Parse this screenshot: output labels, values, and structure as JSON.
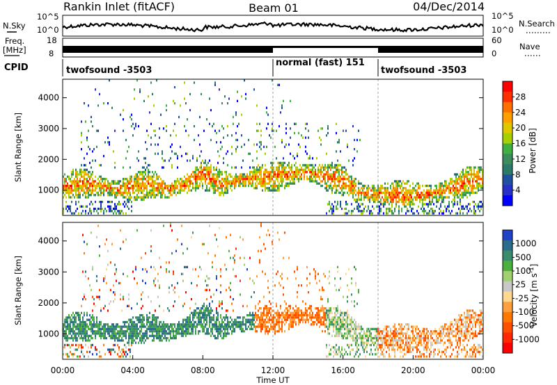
{
  "header": {
    "station": "Rankin Inlet (fitACF)",
    "beam": "Beam 01",
    "date": "04/Dec/2014"
  },
  "noise_panel": {
    "left_label": "N.Sky",
    "right_label": "N.Search",
    "left_ticks": [
      "10^5",
      "10^0"
    ],
    "right_ticks": [
      "10^5",
      "10^0"
    ]
  },
  "freq_panel": {
    "left_label_1": "Freq.",
    "left_label_2": "[MHz]",
    "right_label": "Nave",
    "left_ticks": [
      "18",
      "8"
    ],
    "right_ticks": [
      "60",
      "0"
    ]
  },
  "cpid": {
    "label": "CPID",
    "segments": [
      {
        "name": "twofsound -3503",
        "start_hour": 0,
        "end_hour": 12
      },
      {
        "name": "normal (fast) 151",
        "start_hour": 12,
        "end_hour": 18
      },
      {
        "name": "twofsound -3503",
        "start_hour": 18,
        "end_hour": 24
      }
    ]
  },
  "power_panel": {
    "ylabel": "Slant Range [km]",
    "yticks": [
      "4000",
      "3000",
      "2000",
      "1000"
    ],
    "colorbar_label": "Power [dB]",
    "colorbar_ticks": [
      "28",
      "24",
      "20",
      "16",
      "12",
      "8",
      "4"
    ],
    "colorbar_colors": [
      "#ff0000",
      "#ff3000",
      "#ff7000",
      "#ffa000",
      "#e0c800",
      "#a8d000",
      "#40b040",
      "#3c8c5c",
      "#2c7a6a",
      "#2050a0",
      "#2830c8",
      "#0000ff"
    ]
  },
  "velocity_panel": {
    "ylabel": "Slant Range [km]",
    "yticks": [
      "4000",
      "3000",
      "2000",
      "1000"
    ],
    "colorbar_label": "Velocity [m s^-1]",
    "colorbar_label_main": "Velocity [m s",
    "colorbar_label_sup": "-1",
    "colorbar_label_end": "]",
    "colorbar_ticks": [
      "1000",
      "500",
      "100",
      "25",
      "-25",
      "-100",
      "-500",
      "-1000"
    ],
    "colorbar_colors": [
      "#2040c8",
      "#2c6c8c",
      "#3a8c6a",
      "#4cb040",
      "#a0d070",
      "#c8c8c8",
      "#ffd890",
      "#ffa040",
      "#ff7800",
      "#ff5000",
      "#ff2800",
      "#ff0000"
    ]
  },
  "time_axis": {
    "ticks": [
      "00:00",
      "04:00",
      "08:00",
      "12:00",
      "16:00",
      "20:00",
      "00:00"
    ],
    "label": "Time UT"
  },
  "chart_data": {
    "type": "heatmap",
    "title": "Rankin Inlet (fitACF)",
    "subtitle": "Beam 01 04/Dec/2014",
    "xlabel": "Time UT",
    "ylabel": "Slant Range [km]",
    "xlim": [
      0,
      24
    ],
    "ylim": [
      180,
      4600
    ],
    "x_unit": "hours UT",
    "series": [
      {
        "name": "Power [dB]",
        "clim": [
          0,
          30
        ],
        "main_band_range_km": [
          [
            0,
            1100
          ],
          [
            1,
            1200
          ],
          [
            2,
            1150
          ],
          [
            3,
            1000
          ],
          [
            4,
            1050
          ],
          [
            5,
            1200
          ],
          [
            6,
            1000
          ],
          [
            7,
            1150
          ],
          [
            8,
            1500
          ],
          [
            9,
            1200
          ],
          [
            10,
            1250
          ],
          [
            11,
            1400
          ],
          [
            12,
            1400
          ],
          [
            13,
            1500
          ],
          [
            14,
            1550
          ],
          [
            15,
            1400
          ],
          [
            16,
            1300
          ],
          [
            17,
            900
          ],
          [
            18,
            850
          ],
          [
            19,
            800
          ],
          [
            20,
            800
          ],
          [
            21,
            850
          ],
          [
            22,
            1000
          ],
          [
            23,
            1200
          ]
        ]
      },
      {
        "name": "Velocity [m s^-1]",
        "clim": [
          -1000,
          1000
        ],
        "main_band_range_km": [
          [
            0,
            1100
          ],
          [
            1,
            1200
          ],
          [
            2,
            1150
          ],
          [
            3,
            1000
          ],
          [
            4,
            1050
          ],
          [
            5,
            1200
          ],
          [
            6,
            1000
          ],
          [
            7,
            1150
          ],
          [
            8,
            1500
          ],
          [
            9,
            1200
          ],
          [
            10,
            1250
          ],
          [
            11,
            1400
          ],
          [
            12,
            1400
          ],
          [
            13,
            1500
          ],
          [
            14,
            1550
          ],
          [
            15,
            1400
          ],
          [
            16,
            1300
          ],
          [
            17,
            900
          ],
          [
            18,
            850
          ],
          [
            19,
            800
          ],
          [
            20,
            800
          ],
          [
            21,
            850
          ],
          [
            22,
            1000
          ],
          [
            23,
            1200
          ]
        ]
      }
    ]
  }
}
